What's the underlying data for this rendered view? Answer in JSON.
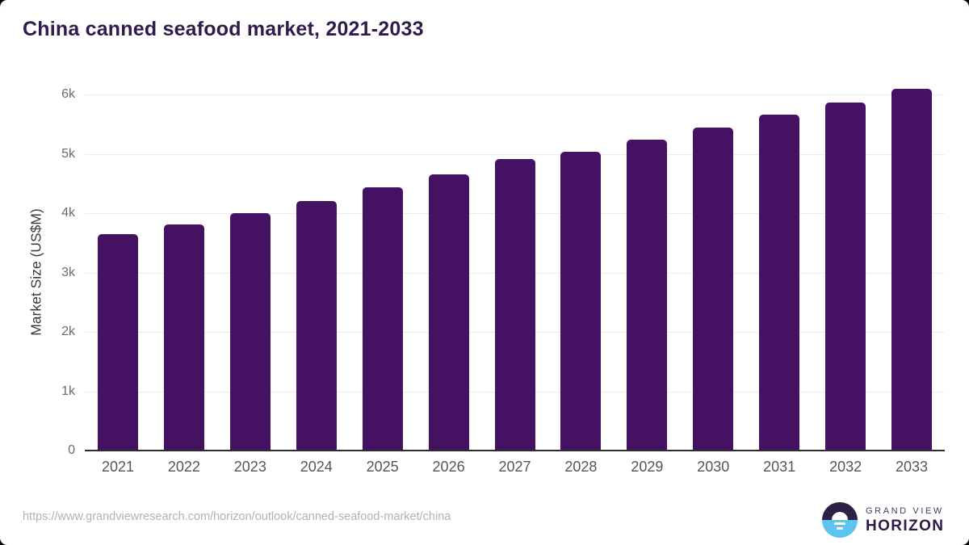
{
  "title": "China canned seafood market, 2021-2033",
  "source_url": "https://www.grandviewresearch.com/horizon/outlook/canned-seafood-market/china",
  "logo": {
    "line1": "GRAND VIEW",
    "line2": "HORIZON"
  },
  "colors": {
    "bar": "#451162",
    "title_text": "#311a4d",
    "gridline": "#ebebeb",
    "axis_line": "#2e2e2e",
    "logo_dark": "#2b2144",
    "logo_blue": "#5fc3ef"
  },
  "chart_data": {
    "type": "bar",
    "title": "China canned seafood market, 2021-2033",
    "categories": [
      "2021",
      "2022",
      "2023",
      "2024",
      "2025",
      "2026",
      "2027",
      "2028",
      "2029",
      "2030",
      "2031",
      "2032",
      "2033"
    ],
    "values": [
      3650,
      3810,
      4000,
      4210,
      4430,
      4660,
      4910,
      5040,
      5240,
      5440,
      5660,
      5870,
      6090
    ],
    "xlabel": "",
    "ylabel": "Market Size (US$M)",
    "ylim": [
      0,
      6000
    ],
    "ytick_step": 1000,
    "ytick_labels": [
      "0",
      "1k",
      "2k",
      "3k",
      "4k",
      "5k",
      "6k"
    ],
    "grid": true,
    "legend": false,
    "bar_color": "#451162"
  }
}
